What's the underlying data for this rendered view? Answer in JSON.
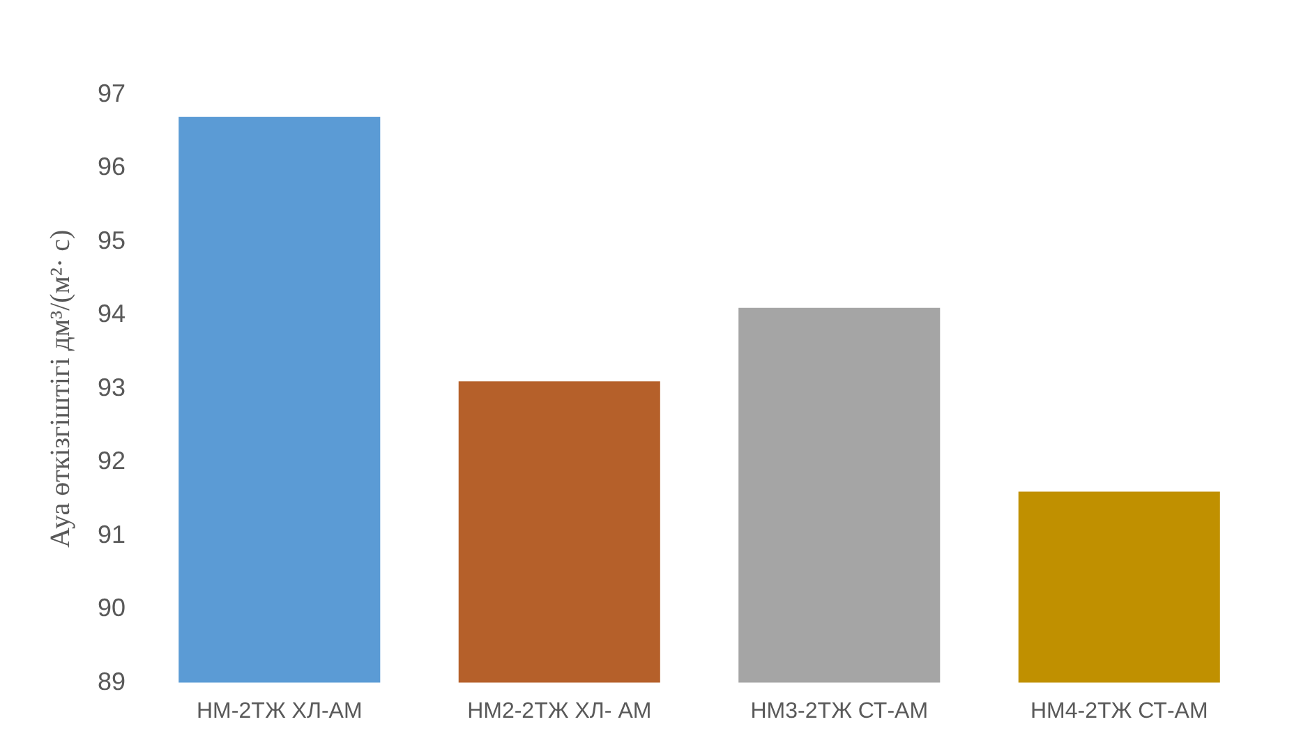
{
  "chart_data": {
    "type": "bar",
    "ylabel": "Ауа өткізгіштігі дм³/(м²· с)",
    "categories": [
      "НМ-2ТЖ ХЛ-АМ",
      "НМ2-2ТЖ ХЛ- АМ",
      "НМ3-2ТЖ СТ-АМ",
      "НМ4-2ТЖ СТ-АМ"
    ],
    "values": [
      96.7,
      93.1,
      94.1,
      91.6
    ],
    "colors": [
      "#5b9bd5",
      "#b5602a",
      "#a5a5a5",
      "#c09000"
    ],
    "ylim": [
      89,
      97
    ],
    "yticks": [
      89,
      90,
      91,
      92,
      93,
      94,
      95,
      96,
      97
    ],
    "grid": false,
    "legend": false
  }
}
